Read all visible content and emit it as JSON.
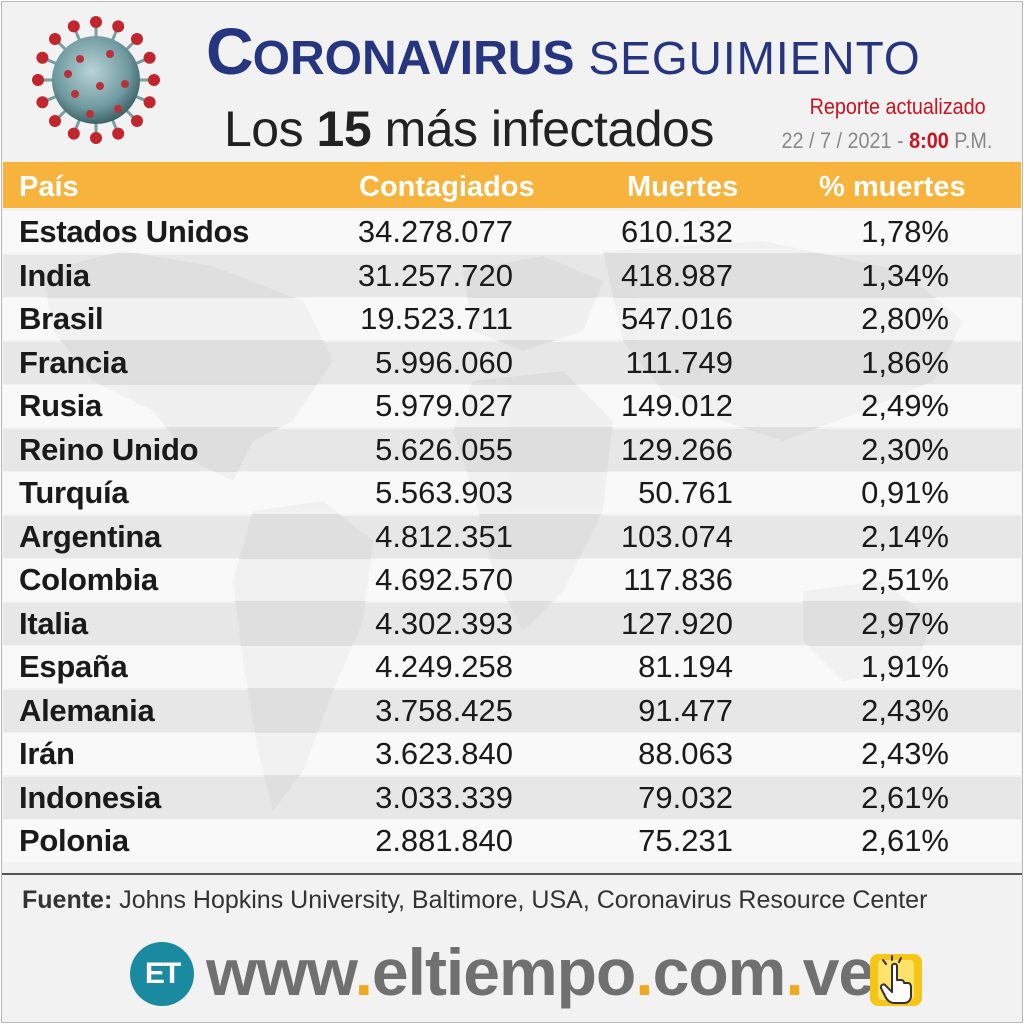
{
  "header": {
    "title_initial": "C",
    "title_rest": "ORONAVIRUS",
    "title_suffix": "SEGUIMIENTO",
    "subtitle_pre": "Los",
    "subtitle_num": "15",
    "subtitle_post": "más infectados",
    "report_label": "Reporte actualizado",
    "report_date": "22 / 7 / 2021 - ",
    "report_time": "8:00",
    "report_ampm": " P.M.",
    "virus_icon": "coronavirus-icon"
  },
  "table": {
    "headers": [
      "País",
      "Contagiados",
      "Muertes",
      "% muertes"
    ],
    "rows": [
      [
        "Estados Unidos",
        "34.278.077",
        "610.132",
        "1,78%"
      ],
      [
        "India",
        "31.257.720",
        "418.987",
        "1,34%"
      ],
      [
        "Brasil",
        "19.523.711",
        "547.016",
        "2,80%"
      ],
      [
        "Francia",
        "5.996.060",
        "111.749",
        "1,86%"
      ],
      [
        "Rusia",
        "5.979.027",
        "149.012",
        "2,49%"
      ],
      [
        "Reino Unido",
        "5.626.055",
        "129.266",
        "2,30%"
      ],
      [
        "Turquía",
        "5.563.903",
        "50.761",
        "0,91%"
      ],
      [
        "Argentina",
        "4.812.351",
        "103.074",
        "2,14%"
      ],
      [
        "Colombia",
        "4.692.570",
        "117.836",
        "2,51%"
      ],
      [
        "Italia",
        "4.302.393",
        "127.920",
        "2,97%"
      ],
      [
        "España",
        "4.249.258",
        "81.194",
        "1,91%"
      ],
      [
        "Alemania",
        "3.758.425",
        "91.477",
        "2,43%"
      ],
      [
        "Irán",
        "3.623.840",
        "88.063",
        "2,43%"
      ],
      [
        "Indonesia",
        "3.033.339",
        "79.032",
        "2,61%"
      ],
      [
        "Polonia",
        "2.881.840",
        "75.231",
        "2,61%"
      ]
    ]
  },
  "source": {
    "label": "Fuente:",
    "text": " Johns Hopkins University, Baltimore, USA, Coronavirus Resource Center"
  },
  "footer": {
    "logo_text": "ET",
    "url_parts": [
      "www",
      ".",
      "eltiempo",
      ".",
      "com",
      ".",
      "ve"
    ],
    "hand_icon": "pointing-hand-icon"
  },
  "colors": {
    "title": "#26357f",
    "header_bar": "#f7b33c",
    "report_red": "#c8141e",
    "logo_teal": "#1a8aa0",
    "url_dot": "#f0a81c"
  }
}
